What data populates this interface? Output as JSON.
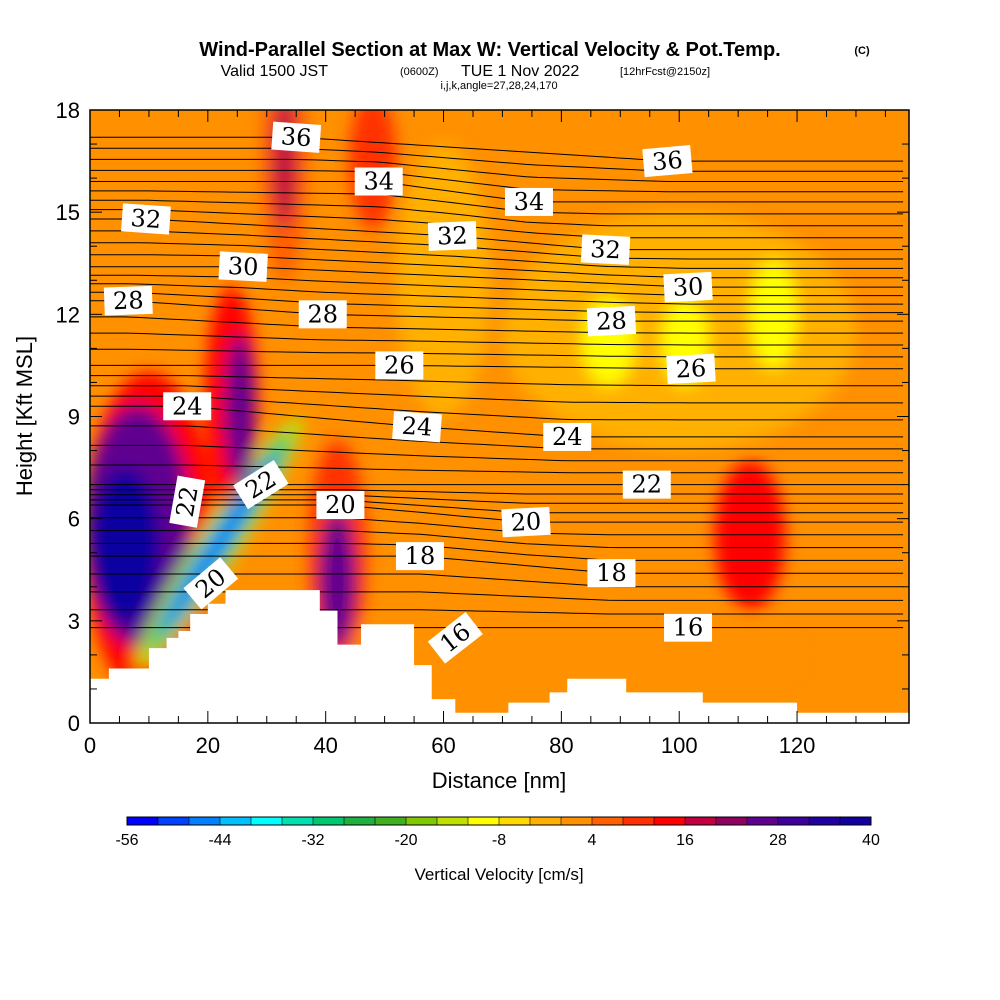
{
  "header": {
    "title": "Wind-Parallel Section at Max W: Vertical Velocity & Pot.Temp.",
    "title_tag": "(C)",
    "valid_a": "Valid 1500 JST",
    "valid_b": "(0600Z)",
    "valid_c": "TUE 1 Nov 2022",
    "valid_d": "[12hrFcst@2150z]",
    "indices": "i,j,k,angle=27,28,24,170"
  },
  "chart_data": {
    "type": "heatmap",
    "xlabel": "Distance [nm]",
    "ylabel": "Height [Kft MSL]",
    "xlim": [
      0,
      139
    ],
    "ylim": [
      0,
      18
    ],
    "x_ticks": [
      "0",
      "20",
      "40",
      "60",
      "80",
      "100",
      "120"
    ],
    "y_ticks": [
      "0",
      "3",
      "6",
      "9",
      "12",
      "15",
      "18"
    ],
    "background_vertical_velocity": 0,
    "colorbar": {
      "label": "Vertical Velocity [cm/s]",
      "tick_labels": [
        "-56",
        "-44",
        "-32",
        "-20",
        "-8",
        "4",
        "16",
        "28",
        "40"
      ],
      "min": -56,
      "max": 40,
      "step": 4,
      "colors": [
        "#0000ff",
        "#0040ff",
        "#0080ff",
        "#00c0ff",
        "#00ffff",
        "#00e0b0",
        "#00c870",
        "#20b040",
        "#40b020",
        "#80c800",
        "#c0e000",
        "#ffff00",
        "#ffd800",
        "#ffb000",
        "#ff9000",
        "#ff6000",
        "#ff3000",
        "#ff0000",
        "#c00040",
        "#900060",
        "#600090",
        "#4000a0",
        "#2000a0",
        "#1000a0"
      ]
    },
    "terrain": [
      {
        "x": 0,
        "h": 1.3
      },
      {
        "x": 3.2,
        "h": 1.6
      },
      {
        "x": 10,
        "h": 2.2
      },
      {
        "x": 13,
        "h": 2.5
      },
      {
        "x": 15,
        "h": 2.7
      },
      {
        "x": 17,
        "h": 3.2
      },
      {
        "x": 20,
        "h": 3.5
      },
      {
        "x": 23,
        "h": 3.9
      },
      {
        "x": 29,
        "h": 3.9
      },
      {
        "x": 39,
        "h": 3.3
      },
      {
        "x": 42,
        "h": 2.3
      },
      {
        "x": 46,
        "h": 2.9
      },
      {
        "x": 55,
        "h": 1.7
      },
      {
        "x": 58,
        "h": 0.7
      },
      {
        "x": 62,
        "h": 0.3
      },
      {
        "x": 71,
        "h": 0.6
      },
      {
        "x": 78,
        "h": 0.9
      },
      {
        "x": 81,
        "h": 1.3
      },
      {
        "x": 91,
        "h": 0.9
      },
      {
        "x": 104,
        "h": 0.6
      },
      {
        "x": 120,
        "h": 0.3
      },
      {
        "x": 139,
        "h": 0.3
      }
    ],
    "vertical_velocity_features": [
      {
        "x": 6,
        "y": 5.2,
        "rx": 6,
        "ry": 2.3,
        "value": 36
      },
      {
        "x": 8,
        "y": 5.8,
        "rx": 9,
        "ry": 3.5,
        "value": 24
      },
      {
        "x": 10,
        "y": 5.5,
        "rx": 11,
        "ry": 4.8,
        "value": 12
      },
      {
        "x": 25.5,
        "y": 9.2,
        "rx": 2.5,
        "ry": 2.2,
        "value": 26
      },
      {
        "x": 24,
        "y": 9.5,
        "rx": 4.5,
        "ry": 3.3,
        "value": 14
      },
      {
        "x": 22,
        "y": 5.3,
        "rx": 1.5,
        "ry": 3.2,
        "rotation": 33,
        "value": -48
      },
      {
        "x": 22,
        "y": 5.3,
        "rx": 2.5,
        "ry": 3.8,
        "rotation": 33,
        "value": -32
      },
      {
        "x": 22,
        "y": 5.3,
        "rx": 3.6,
        "ry": 4.4,
        "rotation": 33,
        "value": -14
      },
      {
        "x": 42,
        "y": 4.2,
        "rx": 3,
        "ry": 2,
        "value": 24
      },
      {
        "x": 42,
        "y": 5,
        "rx": 5,
        "ry": 3.3,
        "value": 10
      },
      {
        "x": 33,
        "y": 16.5,
        "rx": 2,
        "ry": 2,
        "value": 18
      },
      {
        "x": 33,
        "y": 16.5,
        "rx": 4,
        "ry": 3.5,
        "value": 6
      },
      {
        "x": 48,
        "y": 16.5,
        "rx": 4,
        "ry": 2,
        "value": 8
      },
      {
        "x": 88,
        "y": 11.2,
        "rx": 4.5,
        "ry": 1.3,
        "value": -12
      },
      {
        "x": 101,
        "y": 11.2,
        "rx": 4,
        "ry": 1.3,
        "value": -12
      },
      {
        "x": 116,
        "y": 12,
        "rx": 4,
        "ry": 1.6,
        "value": -12
      },
      {
        "x": 100,
        "y": 11.5,
        "rx": 30,
        "ry": 3.5,
        "value": -4
      },
      {
        "x": 112,
        "y": 5.5,
        "rx": 6,
        "ry": 2.2,
        "value": 12
      },
      {
        "x": 80,
        "y": 2,
        "rx": 40,
        "ry": 1.6,
        "value": 2
      },
      {
        "x": 60,
        "y": 13,
        "rx": 8,
        "ry": 4,
        "value": -4
      }
    ],
    "theta_contour_labels": [
      {
        "text": "36",
        "x": 35,
        "y": 17.2,
        "rot": 4
      },
      {
        "text": "36",
        "x": 98,
        "y": 16.5,
        "rot": -5
      },
      {
        "text": "34",
        "x": 49,
        "y": 15.9,
        "rot": 0
      },
      {
        "text": "34",
        "x": 74.5,
        "y": 15.3,
        "rot": 0
      },
      {
        "text": "32",
        "x": 9.5,
        "y": 14.8,
        "rot": 4
      },
      {
        "text": "32",
        "x": 61.5,
        "y": 14.3,
        "rot": -2
      },
      {
        "text": "32",
        "x": 87.5,
        "y": 13.9,
        "rot": 3
      },
      {
        "text": "30",
        "x": 26,
        "y": 13.4,
        "rot": 3
      },
      {
        "text": "30",
        "x": 101.5,
        "y": 12.8,
        "rot": -3
      },
      {
        "text": "28",
        "x": 6.5,
        "y": 12.4,
        "rot": -2
      },
      {
        "text": "28",
        "x": 39.5,
        "y": 12.0,
        "rot": 0
      },
      {
        "text": "28",
        "x": 88.5,
        "y": 11.8,
        "rot": -3
      },
      {
        "text": "26",
        "x": 52.5,
        "y": 10.5,
        "rot": 0
      },
      {
        "text": "26",
        "x": 102,
        "y": 10.4,
        "rot": -3
      },
      {
        "text": "24",
        "x": 16.5,
        "y": 9.3,
        "rot": 0
      },
      {
        "text": "24",
        "x": 55.5,
        "y": 8.7,
        "rot": 4
      },
      {
        "text": "24",
        "x": 81,
        "y": 8.4,
        "rot": 0
      },
      {
        "text": "22",
        "x": 29,
        "y": 7.0,
        "rot": -32
      },
      {
        "text": "22",
        "x": 16.5,
        "y": 6.5,
        "rot": -80
      },
      {
        "text": "22",
        "x": 94.5,
        "y": 7.0,
        "rot": 0
      },
      {
        "text": "20",
        "x": 42.5,
        "y": 6.4,
        "rot": 0
      },
      {
        "text": "20",
        "x": 74,
        "y": 5.9,
        "rot": -3
      },
      {
        "text": "20",
        "x": 20.5,
        "y": 4.1,
        "rot": -40
      },
      {
        "text": "18",
        "x": 56,
        "y": 4.9,
        "rot": 0
      },
      {
        "text": "18",
        "x": 88.5,
        "y": 4.4,
        "rot": 0
      },
      {
        "text": "16",
        "x": 62,
        "y": 2.5,
        "rot": -38
      },
      {
        "text": "16",
        "x": 101.5,
        "y": 2.8,
        "rot": 0
      }
    ]
  }
}
